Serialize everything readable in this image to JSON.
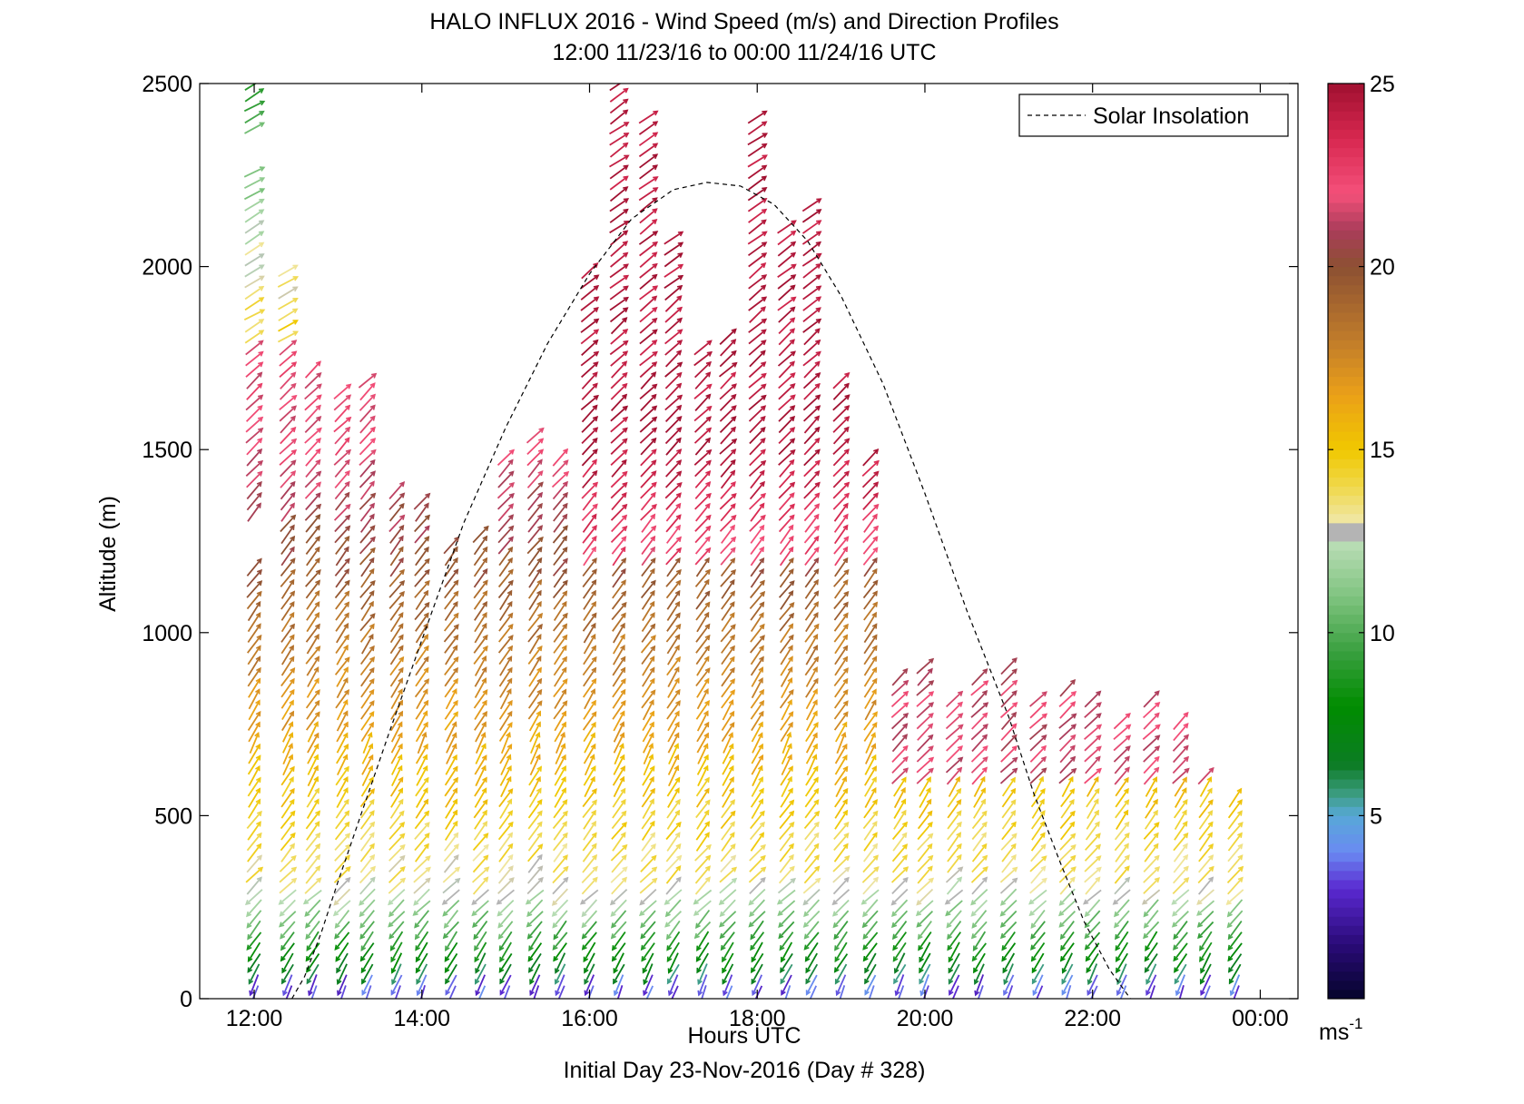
{
  "chart_data": {
    "type": "wind-barb-profile",
    "title": "HALO INFLUX 2016 - Wind Speed (m/s) and Direction Profiles",
    "subtitle": "12:00 11/23/16 to 00:00 11/24/16  UTC",
    "xlabel": "Hours UTC",
    "ylabel": "Altitude (m)",
    "footer": "Initial Day 23-Nov-2016 (Day # 328)",
    "xlim": [
      11.35,
      24.45
    ],
    "ylim": [
      0,
      2500
    ],
    "xticks": [
      12,
      14,
      16,
      18,
      20,
      22,
      24
    ],
    "xtick_labels": [
      "12:00",
      "14:00",
      "16:00",
      "18:00",
      "20:00",
      "22:00",
      "00:00"
    ],
    "yticks": [
      0,
      500,
      1000,
      1500,
      2000,
      2500
    ],
    "ytick_labels": [
      "0",
      "500",
      "1000",
      "1500",
      "2000",
      "2500"
    ],
    "legend": {
      "label": "Solar Insolation",
      "placement": "top-right",
      "style": "dashed"
    },
    "solar_insolation": {
      "x": [
        12.45,
        12.6,
        12.8,
        13.0,
        13.3,
        13.6,
        14.0,
        14.5,
        15.0,
        15.5,
        16.0,
        16.5,
        17.0,
        17.4,
        17.8,
        18.2,
        18.6,
        19.0,
        19.5,
        20.0,
        20.5,
        21.0,
        21.3,
        21.6,
        21.9,
        22.2,
        22.45
      ],
      "y": [
        0,
        60,
        180,
        320,
        520,
        720,
        980,
        1300,
        1560,
        1790,
        1980,
        2130,
        2210,
        2230,
        2220,
        2170,
        2070,
        1920,
        1680,
        1380,
        1060,
        770,
        560,
        380,
        210,
        80,
        0
      ]
    },
    "colorbar": {
      "min": 0,
      "max": 25,
      "ticks": [
        5,
        10,
        15,
        20,
        25
      ],
      "tick_labels": [
        "5",
        "10",
        "15",
        "20",
        "25"
      ],
      "unit_label": "ms",
      "unit_exponent": "-1"
    },
    "profiles": [
      {
        "t": 12.0,
        "max_alt": 2500,
        "gaps": [
          [
            1200,
            1300
          ],
          [
            2280,
            2350
          ]
        ]
      },
      {
        "t": 12.4,
        "max_alt": 2000
      },
      {
        "t": 12.7,
        "max_alt": 1740
      },
      {
        "t": 13.05,
        "max_alt": 1660
      },
      {
        "t": 13.35,
        "max_alt": 1700
      },
      {
        "t": 13.7,
        "max_alt": 1410
      },
      {
        "t": 14.0,
        "max_alt": 1370
      },
      {
        "t": 14.35,
        "max_alt": 1250
      },
      {
        "t": 14.7,
        "max_alt": 1280
      },
      {
        "t": 15.0,
        "max_alt": 1500
      },
      {
        "t": 15.35,
        "max_alt": 1560
      },
      {
        "t": 15.65,
        "max_alt": 1500
      },
      {
        "t": 16.0,
        "max_alt": 2000
      },
      {
        "t": 16.35,
        "max_alt": 2500
      },
      {
        "t": 16.7,
        "max_alt": 2410
      },
      {
        "t": 17.0,
        "max_alt": 2080
      },
      {
        "t": 17.35,
        "max_alt": 1780
      },
      {
        "t": 17.65,
        "max_alt": 1820
      },
      {
        "t": 18.0,
        "max_alt": 2410
      },
      {
        "t": 18.35,
        "max_alt": 2110
      },
      {
        "t": 18.65,
        "max_alt": 2170
      },
      {
        "t": 19.0,
        "max_alt": 1700
      },
      {
        "t": 19.35,
        "max_alt": 1490
      },
      {
        "t": 19.7,
        "max_alt": 880
      },
      {
        "t": 20.0,
        "max_alt": 910
      },
      {
        "t": 20.35,
        "max_alt": 840
      },
      {
        "t": 20.65,
        "max_alt": 880
      },
      {
        "t": 21.0,
        "max_alt": 920
      },
      {
        "t": 21.35,
        "max_alt": 830
      },
      {
        "t": 21.7,
        "max_alt": 870
      },
      {
        "t": 22.0,
        "max_alt": 830
      },
      {
        "t": 22.35,
        "max_alt": 780
      },
      {
        "t": 22.7,
        "max_alt": 840
      },
      {
        "t": 23.05,
        "max_alt": 780
      },
      {
        "t": 23.35,
        "max_alt": 620
      },
      {
        "t": 23.7,
        "max_alt": 550
      }
    ]
  }
}
